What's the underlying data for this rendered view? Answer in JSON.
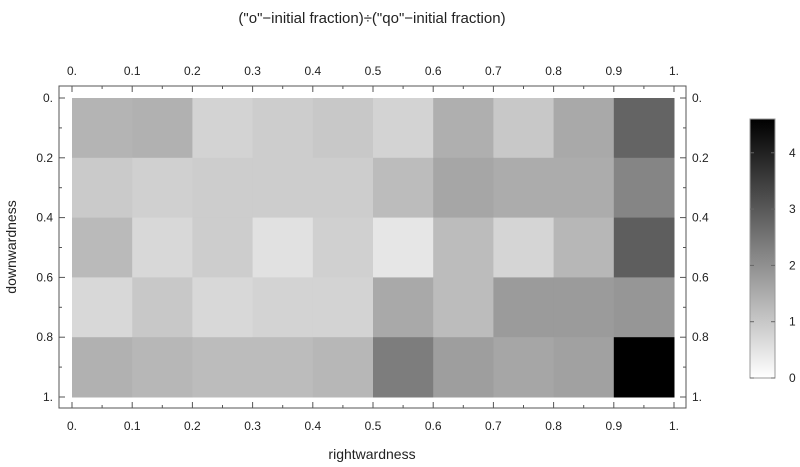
{
  "chart_data": {
    "type": "heatmap",
    "title": "(\"o\"−initial fraction)÷(\"qo\"−initial fraction)",
    "xlabel": "rightwardness",
    "ylabel": "downwardness",
    "x_ticks": [
      "0.",
      "0.1",
      "0.2",
      "0.3",
      "0.4",
      "0.5",
      "0.6",
      "0.7",
      "0.8",
      "0.9",
      "1."
    ],
    "y_ticks": [
      "0.",
      "0.2",
      "0.4",
      "0.6",
      "0.8",
      "1."
    ],
    "xlim": [
      0,
      1
    ],
    "ylim": [
      0,
      1
    ],
    "grid": false,
    "colormap": "white-to-black grayscale",
    "color_low": "#ffffff",
    "color_high": "#000000",
    "colorbar": {
      "range": [
        0,
        4.6
      ],
      "ticks": [
        "0",
        "1",
        "2",
        "3",
        "4"
      ],
      "placement": "right"
    },
    "rows": [
      [
        1.35,
        1.4,
        0.8,
        0.9,
        1.0,
        0.8,
        1.45,
        1.0,
        1.55,
        2.8
      ],
      [
        0.95,
        0.85,
        0.9,
        0.9,
        0.9,
        1.2,
        1.6,
        1.5,
        1.5,
        2.2
      ],
      [
        1.25,
        0.7,
        0.9,
        0.55,
        0.85,
        0.45,
        1.2,
        0.75,
        1.3,
        2.9
      ],
      [
        0.7,
        1.0,
        0.7,
        0.8,
        0.8,
        1.55,
        1.2,
        1.8,
        1.8,
        1.9
      ],
      [
        1.4,
        1.3,
        1.2,
        1.2,
        1.3,
        2.35,
        1.75,
        1.6,
        1.7,
        4.6
      ]
    ]
  }
}
